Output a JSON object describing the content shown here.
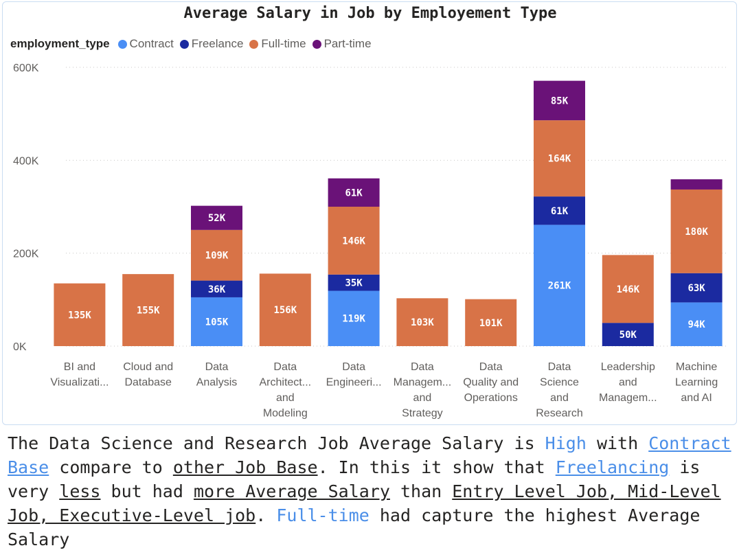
{
  "chart_data": {
    "type": "bar",
    "stacked": true,
    "title": "Average Salary in Job by Employement Type",
    "legend_title": "employment_type",
    "legend_placement": "top-left",
    "grid": true,
    "ylim": [
      0,
      600000
    ],
    "y_ticks": [
      0,
      200000,
      400000,
      600000
    ],
    "y_tick_labels": [
      "0K",
      "200K",
      "400K",
      "600K"
    ],
    "categories": [
      [
        "BI and",
        "Visualizati..."
      ],
      [
        "Cloud and",
        "Database"
      ],
      [
        "Data",
        "Analysis"
      ],
      [
        "Data",
        "Architect...",
        "and",
        "Modeling"
      ],
      [
        "Data",
        "Engineeri..."
      ],
      [
        "Data",
        "Managem...",
        "and",
        "Strategy"
      ],
      [
        "Data",
        "Quality and",
        "Operations"
      ],
      [
        "Data",
        "Science",
        "and",
        "Research"
      ],
      [
        "Leadership",
        "and",
        "Managem..."
      ],
      [
        "Machine",
        "Learning",
        "and AI"
      ]
    ],
    "series": [
      {
        "name": "Contract",
        "color": "#4a8ef5",
        "values": [
          0,
          0,
          105000,
          0,
          119000,
          0,
          0,
          261000,
          0,
          94000
        ],
        "labels": [
          "",
          "",
          "105K",
          "",
          "119K",
          "",
          "",
          "261K",
          "",
          "94K"
        ]
      },
      {
        "name": "Freelance",
        "color": "#1b2aa0",
        "values": [
          0,
          0,
          36000,
          0,
          35000,
          0,
          0,
          61000,
          50000,
          63000
        ],
        "labels": [
          "",
          "",
          "36K",
          "",
          "35K",
          "",
          "",
          "61K",
          "50K",
          "63K"
        ]
      },
      {
        "name": "Full-time",
        "color": "#d87347",
        "values": [
          135000,
          155000,
          109000,
          156000,
          146000,
          103000,
          101000,
          164000,
          146000,
          180000
        ],
        "labels": [
          "135K",
          "155K",
          "109K",
          "156K",
          "146K",
          "103K",
          "101K",
          "164K",
          "146K",
          "180K"
        ]
      },
      {
        "name": "Part-time",
        "color": "#6a1278",
        "values": [
          0,
          0,
          52000,
          0,
          61000,
          0,
          0,
          85000,
          0,
          22000
        ],
        "labels": [
          "",
          "",
          "52K",
          "",
          "61K",
          "",
          "",
          "85K",
          "",
          ""
        ]
      }
    ]
  },
  "caption": {
    "p1": "The Data Science and Research Job Average Salary is ",
    "p2": "High",
    "p3": " with ",
    "p4": "Contract Base",
    "p5": " compare to ",
    "p6": "other Job Base",
    "p7": ". In this it show that ",
    "p8": "Freelancing",
    "p9": " is very ",
    "p10": "less",
    "p11": " but had ",
    "p12": "more Average Salary",
    "p13": " than ",
    "p14": "Entry Level Job, Mid-Level Job, Executive-Level job",
    "p15": ". ",
    "p16": "Full-time",
    "p17": " had capture the highest Average Salary"
  }
}
